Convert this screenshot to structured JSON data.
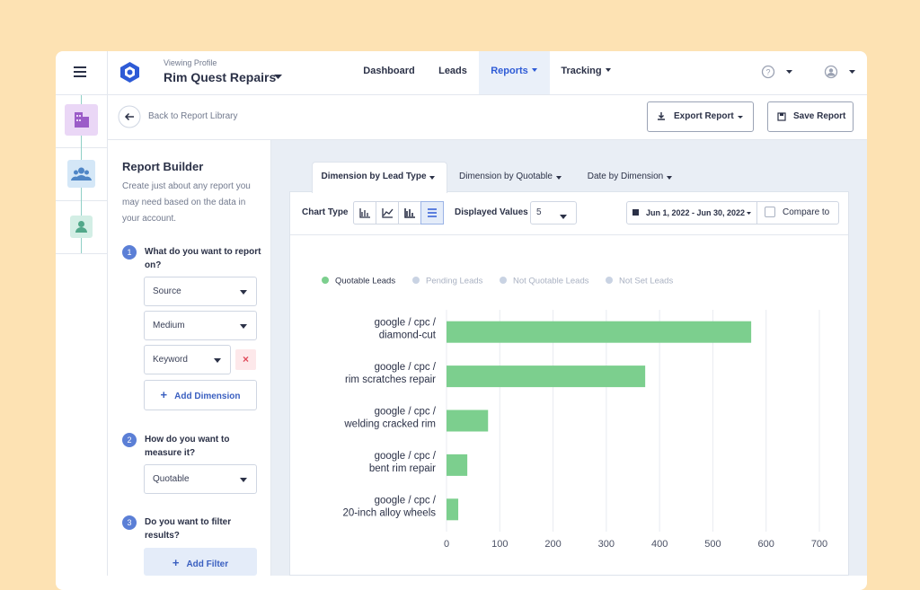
{
  "header": {
    "viewing_label": "Viewing Profile",
    "profile": "Rim Quest Repairs",
    "nav": [
      "Dashboard",
      "Leads",
      "Reports",
      "Tracking"
    ]
  },
  "toolbar": {
    "back": "Back to Report Library",
    "export": "Export Report",
    "save": "Save Report"
  },
  "builder": {
    "title": "Report Builder",
    "description": [
      "Create just about any report you",
      "may need based on the data in",
      "your account."
    ],
    "steps": [
      {
        "number": "1",
        "question": [
          "What do you want to report",
          "on?"
        ],
        "fields": [
          "Source",
          "Medium",
          "Keyword"
        ],
        "action": "Add Dimension"
      },
      {
        "number": "2",
        "question": [
          "How do you want to",
          "measure it?"
        ],
        "fields": [
          "Quotable"
        ]
      },
      {
        "number": "3",
        "question": [
          "Do you want to filter",
          "results?"
        ],
        "action": "Add Filter"
      }
    ]
  },
  "tabs": [
    "Dimension by Lead Type",
    "Dimension by Quotable",
    "Date by Dimension"
  ],
  "controls": {
    "chart_type_label": "Chart Type",
    "displayed_values_label": "Displayed Values",
    "displayed_values": 5,
    "date_range": "Jun 1, 2022 - Jun 30, 2022",
    "compare": "Compare to"
  },
  "chart_data": {
    "type": "hbar",
    "categories": [
      "google / cpc /\ndiamond-cut",
      "google / cpc /\nrim scratches repair",
      "google / cpc /\nwelding cracked rim",
      "google / cpc /\nbent rim repair",
      "google / cpc /\n20-inch alloy wheels"
    ],
    "series": [
      {
        "name": "Quotable Leads",
        "color": "#7ccf8e",
        "values": [
          572,
          373,
          78,
          39,
          22
        ]
      },
      {
        "name": "Pending Leads",
        "color": "#c9d3e3",
        "hidden": true,
        "values": [
          null,
          null,
          null,
          null,
          null
        ]
      },
      {
        "name": "Not Quotable Leads",
        "color": "#c9d3e3",
        "hidden": true,
        "values": [
          null,
          null,
          null,
          null,
          null
        ]
      },
      {
        "name": "Not Set Leads",
        "color": "#c9d3e3",
        "hidden": true,
        "values": [
          null,
          null,
          null,
          null,
          null
        ]
      }
    ],
    "xlim": [
      0,
      700
    ],
    "xticks": [
      0,
      100,
      200,
      300,
      400,
      500,
      600,
      700
    ],
    "grid": true
  }
}
